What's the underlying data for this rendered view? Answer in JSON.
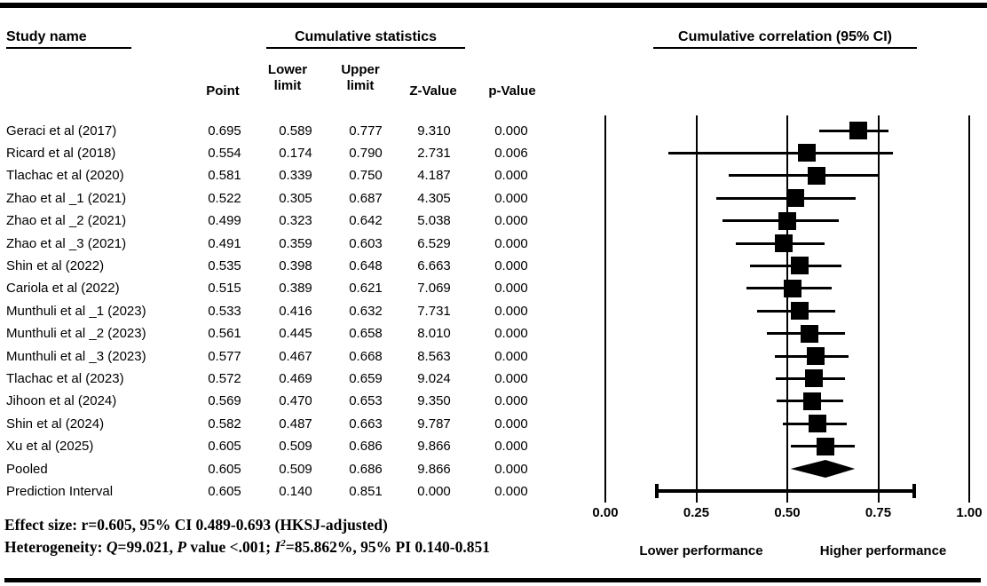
{
  "header": {
    "study_col": "Study name",
    "stats_group": "Cumulative statistics",
    "plot_group": "Cumulative correlation (95% CI)",
    "columns": {
      "point": "Point",
      "lower_line1": "Lower",
      "lower_line2": "limit",
      "upper_line1": "Upper",
      "upper_line2": "limit",
      "z": "Z-Value",
      "p": "p-Value"
    }
  },
  "chart_data": {
    "type": "forest",
    "title": "Cumulative correlation (95% CI)",
    "x_axis": {
      "range": [
        0.0,
        1.0
      ],
      "ticks": [
        0.0,
        0.25,
        0.5,
        0.75,
        1.0
      ],
      "tick_labels": [
        "0.00",
        "0.25",
        "0.50",
        "0.75",
        "1.00"
      ],
      "gridlines": true
    },
    "axis_footer": {
      "left": "Lower performance",
      "right": "Higher performance"
    },
    "studies": [
      {
        "name": "Geraci et al (2017)",
        "point": "0.695",
        "lower": "0.589",
        "upper": "0.777",
        "z": "9.310",
        "p": "0.000",
        "marker": "square"
      },
      {
        "name": "Ricard et al (2018)",
        "point": "0.554",
        "lower": "0.174",
        "upper": "0.790",
        "z": "2.731",
        "p": "0.006",
        "marker": "square"
      },
      {
        "name": "Tlachac et al (2020)",
        "point": "0.581",
        "lower": "0.339",
        "upper": "0.750",
        "z": "4.187",
        "p": "0.000",
        "marker": "square"
      },
      {
        "name": "Zhao et al _1 (2021)",
        "point": "0.522",
        "lower": "0.305",
        "upper": "0.687",
        "z": "4.305",
        "p": "0.000",
        "marker": "square"
      },
      {
        "name": "Zhao et al _2 (2021)",
        "point": "0.499",
        "lower": "0.323",
        "upper": "0.642",
        "z": "5.038",
        "p": "0.000",
        "marker": "square"
      },
      {
        "name": "Zhao et al _3 (2021)",
        "point": "0.491",
        "lower": "0.359",
        "upper": "0.603",
        "z": "6.529",
        "p": "0.000",
        "marker": "square"
      },
      {
        "name": "Shin et al (2022)",
        "point": "0.535",
        "lower": "0.398",
        "upper": "0.648",
        "z": "6.663",
        "p": "0.000",
        "marker": "square"
      },
      {
        "name": "Cariola et al (2022)",
        "point": "0.515",
        "lower": "0.389",
        "upper": "0.621",
        "z": "7.069",
        "p": "0.000",
        "marker": "square"
      },
      {
        "name": "Munthuli et al _1 (2023)",
        "point": "0.533",
        "lower": "0.416",
        "upper": "0.632",
        "z": "7.731",
        "p": "0.000",
        "marker": "square"
      },
      {
        "name": "Munthuli et al _2 (2023)",
        "point": "0.561",
        "lower": "0.445",
        "upper": "0.658",
        "z": "8.010",
        "p": "0.000",
        "marker": "square"
      },
      {
        "name": "Munthuli et al _3 (2023)",
        "point": "0.577",
        "lower": "0.467",
        "upper": "0.668",
        "z": "8.563",
        "p": "0.000",
        "marker": "square"
      },
      {
        "name": "Tlachac et al (2023)",
        "point": "0.572",
        "lower": "0.469",
        "upper": "0.659",
        "z": "9.024",
        "p": "0.000",
        "marker": "square"
      },
      {
        "name": "Jihoon et al (2024)",
        "point": "0.569",
        "lower": "0.470",
        "upper": "0.653",
        "z": "9.350",
        "p": "0.000",
        "marker": "square"
      },
      {
        "name": "Shin et al (2024)",
        "point": "0.582",
        "lower": "0.487",
        "upper": "0.663",
        "z": "9.787",
        "p": "0.000",
        "marker": "square"
      },
      {
        "name": "Xu et al (2025)",
        "point": "0.605",
        "lower": "0.509",
        "upper": "0.686",
        "z": "9.866",
        "p": "0.000",
        "marker": "square"
      },
      {
        "name": "Pooled",
        "point": "0.605",
        "lower": "0.509",
        "upper": "0.686",
        "z": "9.866",
        "p": "0.000",
        "marker": "diamond"
      },
      {
        "name": "Prediction Interval",
        "point": "0.605",
        "lower": "0.140",
        "upper": "0.851",
        "z": "0.000",
        "p": "0.000",
        "marker": "interval"
      }
    ]
  },
  "footer": {
    "line1": "Effect size: r=0.605, 95% CI 0.489-0.693 (HKSJ-adjusted)",
    "line2_segments": [
      {
        "t": "Heterogeneity: "
      },
      {
        "t": "Q",
        "italic": true
      },
      {
        "t": "=99.021, "
      },
      {
        "t": "P",
        "italic": true
      },
      {
        "t": " value <.001; "
      },
      {
        "t": "I",
        "italic": true
      },
      {
        "t": "2",
        "italic": true,
        "sup": true
      },
      {
        "t": "=85.862%, 95% PI 0.140-0.851"
      }
    ]
  },
  "colors": {
    "ink": "#000000",
    "background": "#ffffff"
  }
}
